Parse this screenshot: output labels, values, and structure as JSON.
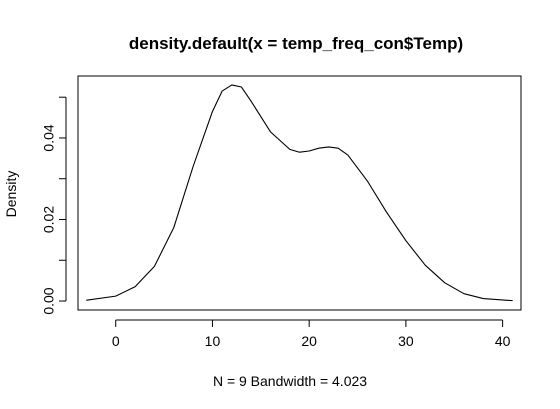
{
  "chart_data": {
    "type": "line",
    "title": "density.default(x = temp_freq_con$Temp)",
    "xlabel": "N = 9   Bandwidth = 4.023",
    "ylabel": "Density",
    "xlim": [
      -3.9,
      41.9
    ],
    "ylim": [
      -0.0022,
      0.0552
    ],
    "x_ticks": [
      0,
      10,
      20,
      30,
      40
    ],
    "x_tick_labels": [
      "0",
      "10",
      "20",
      "30",
      "40"
    ],
    "y_ticks": [
      0.0,
      0.01,
      0.02,
      0.03,
      0.04,
      0.05
    ],
    "y_tick_labels": [
      "0.00",
      "",
      "0.02",
      "",
      "0.04",
      ""
    ],
    "grid": false,
    "legend": "none",
    "series": [
      {
        "color": "#000000",
        "x": [
          -3.0,
          0.0,
          2.0,
          4.0,
          6.0,
          8.0,
          10.0,
          11.0,
          12.0,
          13.0,
          14.0,
          16.0,
          18.0,
          19.0,
          20.0,
          21.0,
          22.0,
          23.0,
          24.0,
          26.0,
          28.0,
          30.0,
          32.0,
          34.0,
          36.0,
          38.0,
          41.0
        ],
        "y": [
          0.0002,
          0.0012,
          0.0035,
          0.0085,
          0.018,
          0.033,
          0.0465,
          0.0515,
          0.053,
          0.0525,
          0.049,
          0.0415,
          0.0372,
          0.0365,
          0.0368,
          0.0375,
          0.0378,
          0.0375,
          0.0358,
          0.0295,
          0.0218,
          0.0148,
          0.0088,
          0.0045,
          0.0018,
          0.0006,
          0.0001
        ]
      }
    ]
  }
}
